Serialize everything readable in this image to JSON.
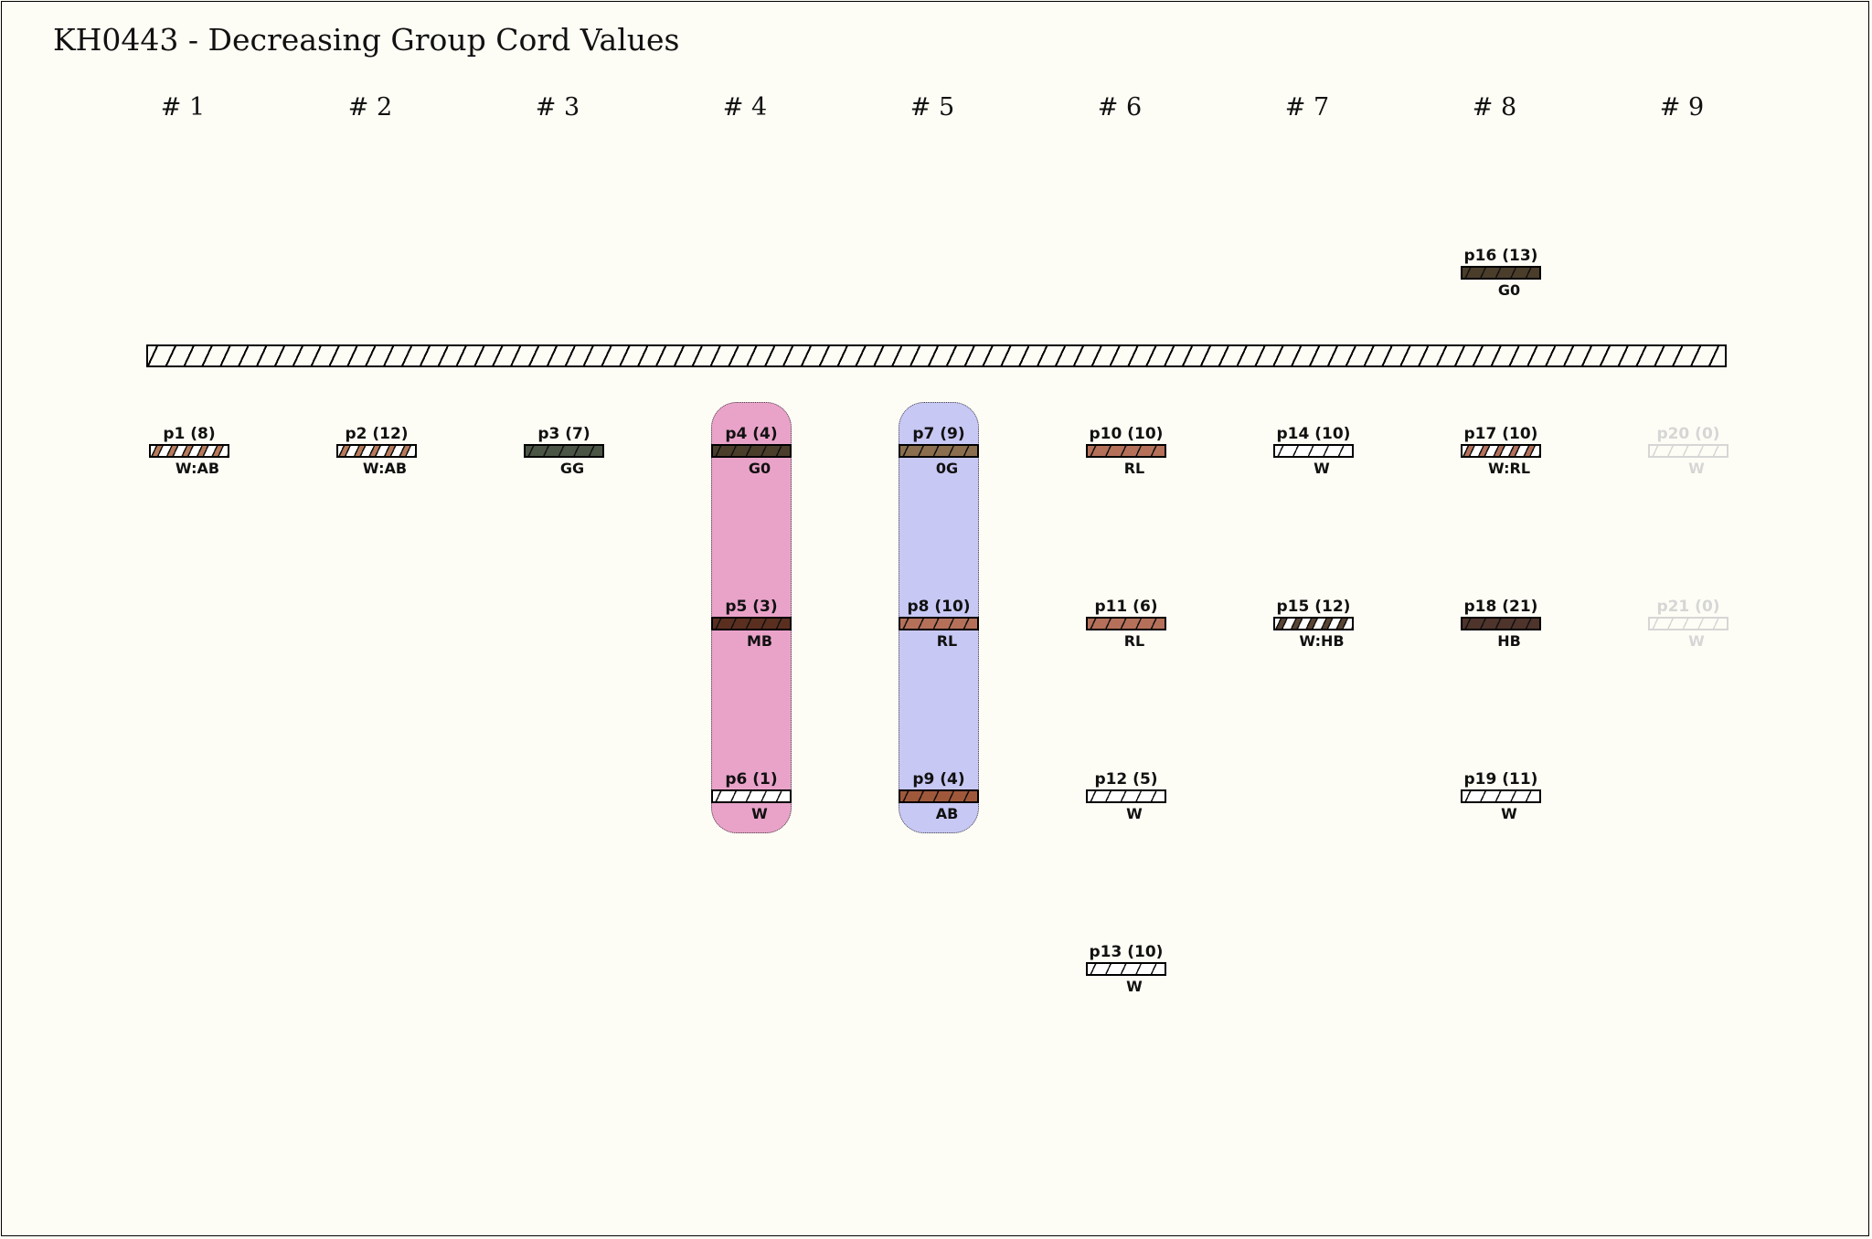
{
  "title": "KH0443 - Decreasing Group Cord Values",
  "groups": [
    "# 1",
    "# 2",
    "# 3",
    "# 4",
    "# 5",
    "# 6",
    "# 7",
    "# 8",
    "# 9"
  ],
  "bands": [
    {
      "group": 4,
      "color": "#e9a3c9",
      "from_row": 1,
      "to_row": 3
    },
    {
      "group": 5,
      "color": "#c8c8f5",
      "from_row": 1,
      "to_row": 3
    }
  ],
  "cords": [
    {
      "id": "p1",
      "label": "p1 (8)",
      "value": 8,
      "color_code": "W:AB",
      "group": 1,
      "row": 1,
      "style": "mixed",
      "colors": [
        "#ffffff",
        "#b87a5a"
      ]
    },
    {
      "id": "p2",
      "label": "p2 (12)",
      "value": 12,
      "color_code": "W:AB",
      "group": 2,
      "row": 1,
      "style": "mixed",
      "colors": [
        "#ffffff",
        "#b87a5a"
      ]
    },
    {
      "id": "p3",
      "label": "p3 (7)",
      "value": 7,
      "color_code": "GG",
      "group": 3,
      "row": 1,
      "style": "solid",
      "colors": [
        "#4b5545"
      ]
    },
    {
      "id": "p4",
      "label": "p4 (4)",
      "value": 4,
      "color_code": "G0",
      "group": 4,
      "row": 1,
      "style": "solid",
      "colors": [
        "#4a3d2a"
      ]
    },
    {
      "id": "p5",
      "label": "p5 (3)",
      "value": 3,
      "color_code": "MB",
      "group": 4,
      "row": 2,
      "style": "solid",
      "colors": [
        "#5a2f20"
      ]
    },
    {
      "id": "p6",
      "label": "p6 (1)",
      "value": 1,
      "color_code": "W",
      "group": 4,
      "row": 3,
      "style": "solid",
      "colors": [
        "#ffffff"
      ]
    },
    {
      "id": "p7",
      "label": "p7 (9)",
      "value": 9,
      "color_code": "0G",
      "group": 5,
      "row": 1,
      "style": "solid",
      "colors": [
        "#8a6e4e"
      ]
    },
    {
      "id": "p8",
      "label": "p8 (10)",
      "value": 10,
      "color_code": "RL",
      "group": 5,
      "row": 2,
      "style": "solid",
      "colors": [
        "#b5705a"
      ]
    },
    {
      "id": "p9",
      "label": "p9 (4)",
      "value": 4,
      "color_code": "AB",
      "group": 5,
      "row": 3,
      "style": "solid",
      "colors": [
        "#a0583a"
      ]
    },
    {
      "id": "p10",
      "label": "p10 (10)",
      "value": 10,
      "color_code": "RL",
      "group": 6,
      "row": 1,
      "style": "solid",
      "colors": [
        "#b5705a"
      ]
    },
    {
      "id": "p11",
      "label": "p11 (6)",
      "value": 6,
      "color_code": "RL",
      "group": 6,
      "row": 2,
      "style": "solid",
      "colors": [
        "#b5705a"
      ]
    },
    {
      "id": "p12",
      "label": "p12 (5)",
      "value": 5,
      "color_code": "W",
      "group": 6,
      "row": 3,
      "style": "solid",
      "colors": [
        "#ffffff"
      ]
    },
    {
      "id": "p13",
      "label": "p13 (10)",
      "value": 10,
      "color_code": "W",
      "group": 6,
      "row": 4,
      "style": "solid",
      "colors": [
        "#ffffff"
      ]
    },
    {
      "id": "p14",
      "label": "p14 (10)",
      "value": 10,
      "color_code": "W",
      "group": 7,
      "row": 1,
      "style": "solid",
      "colors": [
        "#ffffff"
      ]
    },
    {
      "id": "p15",
      "label": "p15 (12)",
      "value": 12,
      "color_code": "W:HB",
      "group": 7,
      "row": 2,
      "style": "mixed",
      "colors": [
        "#ffffff",
        "#5a4535"
      ]
    },
    {
      "id": "p16",
      "label": "p16 (13)",
      "value": 13,
      "color_code": "G0",
      "group": 8,
      "row": 0,
      "style": "solid",
      "colors": [
        "#4a3d2a"
      ]
    },
    {
      "id": "p17",
      "label": "p17 (10)",
      "value": 10,
      "color_code": "W:RL",
      "group": 8,
      "row": 1,
      "style": "mixed",
      "colors": [
        "#ffffff",
        "#b5705a"
      ]
    },
    {
      "id": "p18",
      "label": "p18 (21)",
      "value": 21,
      "color_code": "HB",
      "group": 8,
      "row": 2,
      "style": "solid",
      "colors": [
        "#4e342b"
      ]
    },
    {
      "id": "p19",
      "label": "p19 (11)",
      "value": 11,
      "color_code": "W",
      "group": 8,
      "row": 3,
      "style": "solid",
      "colors": [
        "#ffffff"
      ]
    },
    {
      "id": "p20",
      "label": "p20 (0)",
      "value": 0,
      "color_code": "W",
      "group": 9,
      "row": 1,
      "style": "faded",
      "colors": [
        "#ffffff"
      ]
    },
    {
      "id": "p21",
      "label": "p21 (0)",
      "value": 0,
      "color_code": "W",
      "group": 9,
      "row": 2,
      "style": "faded",
      "colors": [
        "#ffffff"
      ]
    }
  ]
}
